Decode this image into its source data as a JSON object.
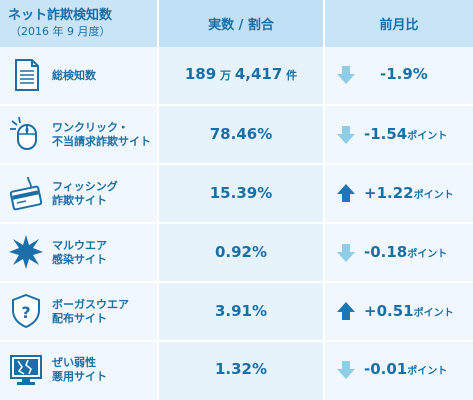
{
  "header": {
    "title": "ネット詐欺検知数",
    "subtitle": "（2016 年 9 月度）",
    "col_value": "実数 / 割合",
    "col_change": "前月比"
  },
  "rows": [
    {
      "icon": "document-icon",
      "label": [
        "総検知数"
      ],
      "value": "189",
      "value_unit1": "万",
      "value2": "4,417",
      "value_unit2": "件",
      "direction": "down",
      "change": "-1.9%",
      "change_unit": ""
    },
    {
      "icon": "mouse-click-icon",
      "label": [
        "ワンクリック・",
        "不当請求詐欺サイト"
      ],
      "value": "78.46%",
      "direction": "down",
      "change": "-1.54",
      "change_unit": "ポイント"
    },
    {
      "icon": "phishing-card-icon",
      "label": [
        "フィッシング",
        "詐欺サイト"
      ],
      "value": "15.39%",
      "direction": "up",
      "change": "+1.22",
      "change_unit": "ポイント"
    },
    {
      "icon": "malware-burst-icon",
      "label": [
        "マルウエア",
        "感染サイト"
      ],
      "value": "0.92%",
      "direction": "down",
      "change": "-0.18",
      "change_unit": "ポイント"
    },
    {
      "icon": "fake-security-shield-icon",
      "label": [
        "ボーガスウエア",
        "配布サイト"
      ],
      "value": "3.91%",
      "direction": "up",
      "change": "+0.51",
      "change_unit": "ポイント"
    },
    {
      "icon": "vulnerable-monitor-icon",
      "label": [
        "ぜい弱性",
        "悪用サイト"
      ],
      "value": "1.32%",
      "direction": "down",
      "change": "-0.01",
      "change_unit": "ポイント"
    }
  ],
  "colors": {
    "text": "#1a6fa8",
    "arrow_down": "#8fcde6",
    "arrow_up": "#1a78b8"
  }
}
